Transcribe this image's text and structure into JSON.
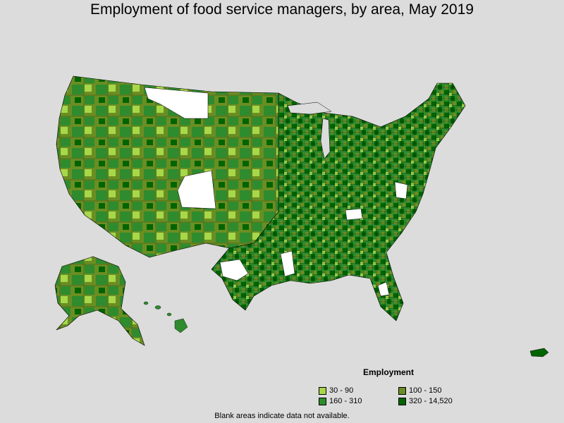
{
  "title": "Employment of food service managers, by area, May 2019",
  "legend": {
    "title": "Employment",
    "items": [
      {
        "label": "30 - 90",
        "color": "#a6d84a"
      },
      {
        "label": "100 - 150",
        "color": "#6b8e23"
      },
      {
        "label": "160 - 310",
        "color": "#2e8b2e"
      },
      {
        "label": "320 - 14,520",
        "color": "#006400"
      }
    ]
  },
  "no_data_color": "#ffffff",
  "footnote": "Blank areas indicate data not available."
}
